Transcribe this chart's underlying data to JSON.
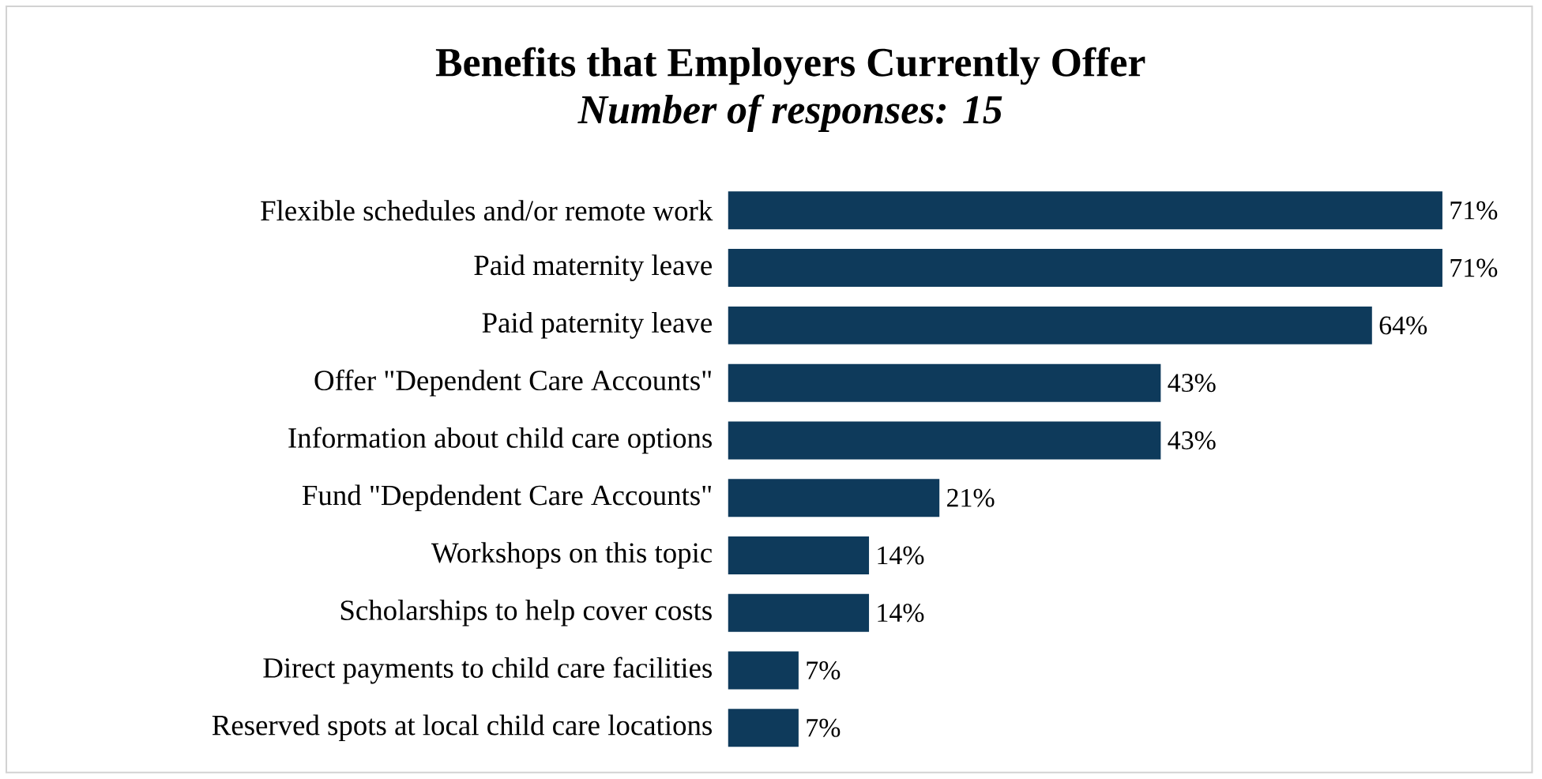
{
  "chart_data": {
    "type": "bar",
    "orientation": "horizontal",
    "title": "Benefits that Employers Currently Offer",
    "subtitle": "Number of responses: 15",
    "categories": [
      "Flexible schedules and/or remote work",
      "Paid maternity leave",
      "Paid paternity leave",
      "Offer \"Dependent Care Accounts\"",
      "Information about child care options",
      "Fund \"Depdendent Care Accounts\"",
      "Workshops on this topic",
      "Scholarships to help cover costs",
      "Direct payments to child care facilities",
      "Reserved spots at local child care locations"
    ],
    "values": [
      71,
      71,
      64,
      43,
      43,
      21,
      14,
      14,
      7,
      7
    ],
    "value_labels": [
      "71%",
      "71%",
      "64%",
      "43%",
      "43%",
      "21%",
      "14%",
      "14%",
      "7%",
      "7%"
    ],
    "color": "#0e3a5b"
  }
}
